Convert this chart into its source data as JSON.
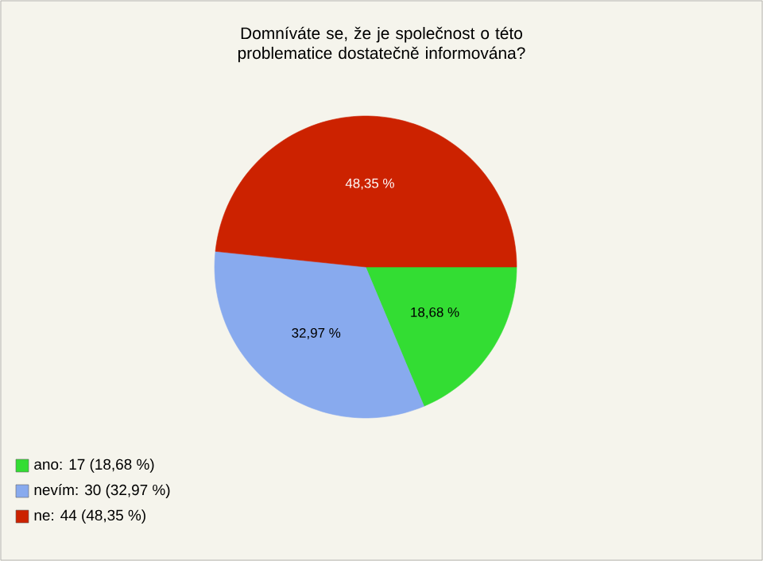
{
  "chart_data": {
    "type": "pie",
    "title": "Domníváte se, že je společnost o této problematice dostatečně informována?",
    "categories": [
      "ano: 17 (18,68 %)",
      "nevím: 30 (32,97 %)",
      "ne: 44 (48,35 %)"
    ],
    "values": [
      18.68,
      32.97,
      48.35
    ],
    "value_labels": [
      "18,68 %",
      "32,97 %",
      "48,35 %"
    ],
    "colors": [
      "#33dd33",
      "#88aaee",
      "#cc2200"
    ],
    "legend": "bottom left"
  }
}
